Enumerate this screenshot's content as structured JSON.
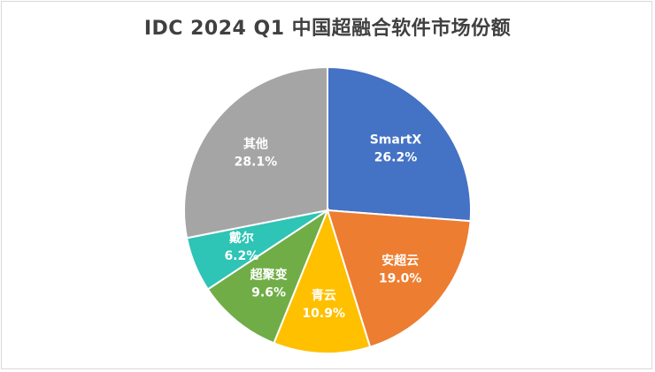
{
  "chart_data": {
    "type": "pie",
    "title": "IDC 2024 Q1 中国超融合软件市场份额",
    "slices": [
      {
        "label": "SmartX",
        "value": 26.2,
        "value_label": "26.2%",
        "color": "#4472c4"
      },
      {
        "label": "安超云",
        "value": 19.0,
        "value_label": "19.0%",
        "color": "#ed7d31"
      },
      {
        "label": "青云",
        "value": 10.9,
        "value_label": "10.9%",
        "color": "#ffc000"
      },
      {
        "label": "超聚变",
        "value": 9.6,
        "value_label": "9.6%",
        "color": "#70ad47"
      },
      {
        "label": "戴尔",
        "value": 6.2,
        "value_label": "6.2%",
        "color": "#2ec4b6"
      },
      {
        "label": "其他",
        "value": 28.1,
        "value_label": "28.1%",
        "color": "#a5a5a5"
      }
    ],
    "legend": "none",
    "start_angle": "12 o'clock, clockwise"
  }
}
